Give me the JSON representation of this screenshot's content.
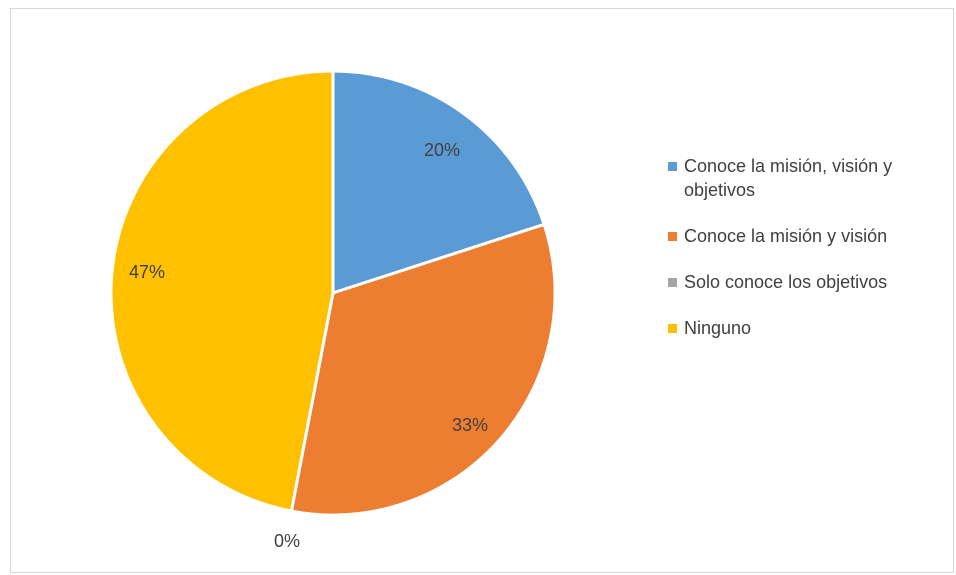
{
  "chart_data": {
    "type": "pie",
    "categories": [
      "Conoce la misión, visión y objetivos",
      "Conoce la misión y visión",
      "Solo conoce los objetivos",
      "Ninguno"
    ],
    "values": [
      20,
      33,
      0,
      47
    ],
    "data_labels": [
      "20%",
      "33%",
      "0%",
      "47%"
    ],
    "colors": [
      "#5B9BD5",
      "#ED7D31",
      "#A5A5A5",
      "#FFC000"
    ],
    "legend_position": "right",
    "start_angle": "top, clockwise"
  }
}
